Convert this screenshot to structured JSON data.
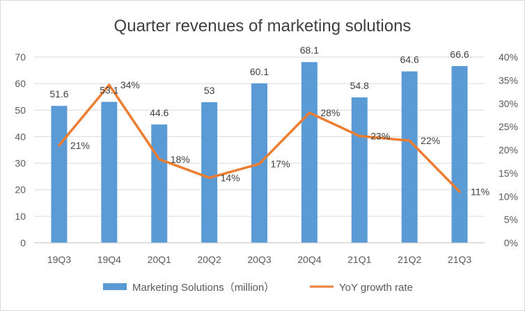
{
  "chart_data": {
    "type": "bar",
    "title": "Quarter revenues of marketing solutions",
    "categories": [
      "19Q3",
      "19Q4",
      "20Q1",
      "20Q2",
      "20Q3",
      "20Q4",
      "21Q1",
      "21Q2",
      "21Q3"
    ],
    "series": [
      {
        "name": "Marketing Solutions（million）",
        "type": "bar",
        "axis": "left",
        "color": "#5B9BD5",
        "values": [
          51.6,
          53.1,
          44.6,
          53,
          60.1,
          68.1,
          54.8,
          64.6,
          66.6
        ],
        "labels": [
          "51.6",
          "53.1",
          "44.6",
          "53",
          "60.1",
          "68.1",
          "54.8",
          "64.6",
          "66.6"
        ]
      },
      {
        "name": "YoY growth rate",
        "type": "line",
        "axis": "right",
        "color": "#ED7D31",
        "values": [
          21,
          34,
          18,
          14,
          17,
          28,
          23,
          22,
          11
        ],
        "labels": [
          "21%",
          "34%",
          "18%",
          "14%",
          "17%",
          "28%",
          "23%",
          "22%",
          "11%"
        ]
      }
    ],
    "y_left": {
      "min": 0,
      "max": 70,
      "ticks": [
        "0",
        "10",
        "20",
        "30",
        "40",
        "50",
        "60",
        "70"
      ]
    },
    "y_right": {
      "min": 0,
      "max": 40,
      "unit": "%",
      "ticks": [
        "0%",
        "5%",
        "10%",
        "15%",
        "20%",
        "25%",
        "30%",
        "35%",
        "40%"
      ]
    },
    "grid": true,
    "legend_position": "bottom"
  }
}
